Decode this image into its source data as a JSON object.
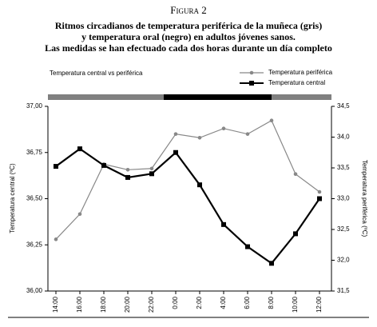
{
  "chart_data": {
    "type": "line",
    "figure_label": "Figura 2",
    "caption_lines": [
      "Ritmos circadianos de temperatura periférica de la muñeca (gris)",
      "y temperatura oral (negro) en adultos jóvenes sanos.",
      "Las medidas se han efectuado cada dos horas durante un día completo"
    ],
    "title": "Temperatura central vs periférica",
    "ylabel": "Temperatura central (ºC)",
    "y2label": "Temperatura periférica (ºC)",
    "categories": [
      "14:00",
      "16:00",
      "18:00",
      "20:00",
      "22:00",
      "0:00",
      "2:00",
      "4:00",
      "6:00",
      "8:00",
      "10:00",
      "12:00"
    ],
    "series": [
      {
        "name": "Temperatura periférica",
        "color": "#888888",
        "marker": "circle",
        "axis": "y2",
        "values": [
          32.34,
          32.75,
          33.56,
          33.47,
          33.49,
          34.05,
          33.99,
          34.14,
          34.05,
          34.27,
          33.4,
          33.11
        ]
      },
      {
        "name": "Temperatura central",
        "color": "#000000",
        "marker": "square",
        "values": [
          36.675,
          36.77,
          36.68,
          36.615,
          36.635,
          36.75,
          36.575,
          36.36,
          36.24,
          36.15,
          36.31,
          36.5
        ]
      }
    ],
    "ylim": [
      36.0,
      37.0
    ],
    "yticks": [
      {
        "value": 36.0,
        "label": "36,00"
      },
      {
        "value": 36.25,
        "label": "36,25"
      },
      {
        "value": 36.5,
        "label": "36,50"
      },
      {
        "value": 36.75,
        "label": "36,75"
      },
      {
        "value": 37.0,
        "label": "37,00"
      }
    ],
    "y2lim": [
      31.5,
      34.5
    ],
    "y2ticks": [
      {
        "value": 31.5,
        "label": "31,5"
      },
      {
        "value": 32.0,
        "label": "32,0"
      },
      {
        "value": 32.5,
        "label": "32,5"
      },
      {
        "value": 33.0,
        "label": "33,0"
      },
      {
        "value": 33.5,
        "label": "33,5"
      },
      {
        "value": 34.0,
        "label": "34,0"
      },
      {
        "value": 34.5,
        "label": "34,5"
      }
    ],
    "grid": false
  }
}
